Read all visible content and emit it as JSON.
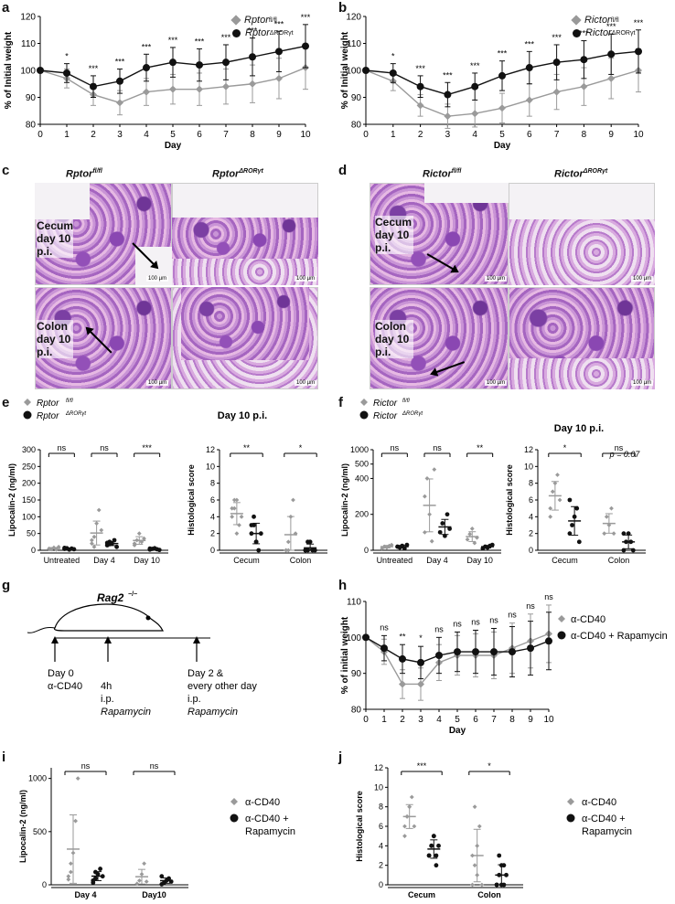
{
  "colors": {
    "grey": "#9a9a9a",
    "black": "#111111"
  },
  "panels": {
    "a": {
      "label": "a",
      "chart_data": {
        "type": "line",
        "ylabel": "% of Initial weight",
        "xlabel": "Day",
        "x": [
          0,
          1,
          2,
          3,
          4,
          5,
          6,
          7,
          8,
          9,
          10
        ],
        "ylim": [
          80,
          120
        ],
        "yticks": [
          "80",
          "90",
          "100",
          "110",
          "120"
        ],
        "series": [
          {
            "name": "Rptor fl/fl",
            "values": [
              100,
              97,
              91,
              88,
              92,
              93,
              93,
              94,
              95,
              97,
              101
            ]
          },
          {
            "name": "Rptor ΔRORγt",
            "values": [
              100,
              99,
              94,
              96,
              101,
              103,
              102,
              103,
              105,
              107,
              109
            ]
          }
        ],
        "significance": [
          "",
          "*",
          "***",
          "***",
          "***",
          "***",
          "***",
          "***",
          "***",
          "***",
          "***"
        ]
      },
      "legend": [
        {
          "base": "Rptor",
          "sup": "fl/fl",
          "symbol": "diamond"
        },
        {
          "base": "Rptor",
          "sup": "ΔRORγt",
          "symbol": "dot"
        }
      ]
    },
    "b": {
      "label": "b",
      "chart_data": {
        "type": "line",
        "ylabel": "% of Initial weight",
        "xlabel": "Day",
        "x": [
          0,
          1,
          2,
          3,
          4,
          5,
          6,
          7,
          8,
          9,
          10
        ],
        "ylim": [
          80,
          120
        ],
        "yticks": [
          "80",
          "90",
          "100",
          "110",
          "120"
        ],
        "series": [
          {
            "name": "Rictor fl/fl",
            "values": [
              100,
              96,
              87,
              83,
              84,
              86,
              89,
              92,
              94,
              97,
              100
            ]
          },
          {
            "name": "Rictor ΔRORγt",
            "values": [
              100,
              99,
              94,
              91,
              94,
              98,
              101,
              103,
              104,
              106,
              107
            ]
          }
        ],
        "significance": [
          "",
          "*",
          "***",
          "***",
          "***",
          "***",
          "***",
          "***",
          "***",
          "***",
          "***"
        ]
      },
      "legend": [
        {
          "base": "Rictor",
          "sup": "fl/fl",
          "symbol": "diamond"
        },
        {
          "base": "Rictor",
          "sup": "ΔRORγt",
          "symbol": "dot"
        }
      ]
    },
    "c": {
      "label": "c",
      "col1": {
        "base": "Rptor",
        "sup": "fl/fl"
      },
      "col2": {
        "base": "Rptor",
        "sup": "ΔRORγt"
      },
      "row1": "Cecum day 10 p.i.",
      "row2": "Colon day 10 p.i.",
      "scale": "100 µm"
    },
    "d": {
      "label": "d",
      "col1": {
        "base": "Rictor",
        "sup": "fl/fl"
      },
      "col2": {
        "base": "Rictor",
        "sup": "ΔRORγt"
      },
      "row1": "Cecum day 10 p.i.",
      "row2": "Colon day 10 p.i.",
      "scale": "100 µm"
    },
    "e": {
      "label": "e",
      "title": "Day 10 p.i.",
      "legend": [
        {
          "base": "Rptor",
          "sup": "fl/fl",
          "symbol": "diamond"
        },
        {
          "base": "Rptor",
          "sup": "ΔRORγt",
          "symbol": "dot"
        }
      ],
      "lcn": {
        "ylabel": "Lipocalin-2 (ng/ml)",
        "yticks": [
          "0",
          "50",
          "100",
          "150",
          "200",
          "250",
          "300"
        ],
        "groups": [
          "Untreated",
          "Day 4",
          "Day 10"
        ],
        "sig": [
          "ns",
          "ns",
          "***"
        ]
      },
      "hist": {
        "ylabel": "Histological score",
        "yticks": [
          "0",
          "2",
          "4",
          "6",
          "8",
          "10",
          "12"
        ],
        "groups": [
          "Cecum",
          "Colon"
        ],
        "sig": [
          "**",
          "*"
        ]
      }
    },
    "f": {
      "label": "f",
      "title": "Day 10 p.i.",
      "legend": [
        {
          "base": "Rictor",
          "sup": "fl/fl",
          "symbol": "diamond"
        },
        {
          "base": "Rictor",
          "sup": "ΔRORγt",
          "symbol": "dot"
        }
      ],
      "lcn": {
        "ylabel": "Lipocalin-2 (ng/ml)",
        "yticks": [
          "0",
          "200",
          "400",
          "500",
          "1000"
        ],
        "groups": [
          "Untreated",
          "Day 4",
          "Day 10"
        ],
        "sig": [
          "ns",
          "ns",
          "**"
        ]
      },
      "hist": {
        "ylabel": "Histological score",
        "yticks": [
          "0",
          "2",
          "4",
          "6",
          "8",
          "10",
          "12"
        ],
        "groups": [
          "Cecum",
          "Colon"
        ],
        "sig": [
          "*",
          "ns"
        ],
        "pvalue": "p = 0.07"
      }
    },
    "g": {
      "label": "g",
      "mouse": "Rag2",
      "mouse_sup": "−/−",
      "day0": "Day 0",
      "acd40": "α-CD40",
      "h4": "4h",
      "ip": "i.p.",
      "rapa": "Rapamycin",
      "day2": "Day 2 &",
      "every": "every other day"
    },
    "h": {
      "label": "h",
      "chart_data": {
        "type": "line",
        "ylabel": "% of initial weight",
        "xlabel": "Day",
        "x": [
          0,
          1,
          2,
          3,
          4,
          5,
          6,
          7,
          8,
          9,
          10
        ],
        "ylim": [
          80,
          110
        ],
        "yticks": [
          "80",
          "90",
          "100",
          "110"
        ],
        "series": [
          {
            "name": "α-CD40",
            "values": [
              100,
              96,
              87,
              87,
              93,
              95,
              95,
              95,
              97,
              99,
              101
            ]
          },
          {
            "name": "α-CD40 + Rapamycin",
            "values": [
              100,
              97,
              94,
              93,
              95,
              96,
              96,
              96,
              96,
              97,
              99
            ]
          }
        ],
        "significance": [
          "",
          "ns",
          "**",
          "*",
          "ns",
          "ns",
          "ns",
          "ns",
          "ns",
          "ns",
          "ns"
        ]
      },
      "legend": [
        "α-CD40",
        "α-CD40 + Rapamycin"
      ]
    },
    "i": {
      "label": "i",
      "ylabel": "Lipocalin-2 (ng/ml)",
      "yticks": [
        "0",
        "500",
        "1000"
      ],
      "groups": [
        "Day 4",
        "Day10"
      ],
      "sig": [
        "ns",
        "ns"
      ],
      "legend": [
        "α-CD40",
        "α-CD40 +",
        "Rapamycin"
      ]
    },
    "j": {
      "label": "j",
      "ylabel": "Histological score",
      "yticks": [
        "0",
        "2",
        "4",
        "6",
        "8",
        "10",
        "12"
      ],
      "groups": [
        "Cecum",
        "Colon"
      ],
      "sig": [
        "***",
        "*"
      ],
      "legend": [
        "α-CD40",
        "α-CD40 +",
        "Rapamycin"
      ]
    }
  }
}
